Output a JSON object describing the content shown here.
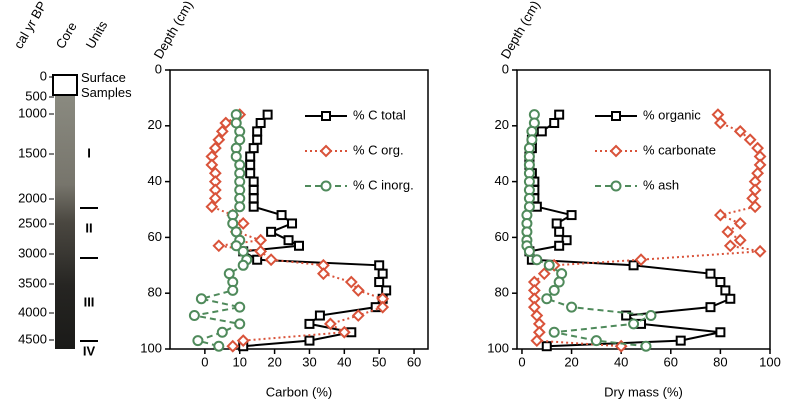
{
  "core_log": {
    "age_label": "cal yr BP",
    "core_label": "Core",
    "units_label": "Units",
    "surface_label": "Surface Samples",
    "ages": [
      0,
      500,
      1000,
      1500,
      2000,
      2500,
      3000,
      3500,
      4000,
      4500
    ],
    "units": [
      "I",
      "II",
      "III",
      "IV"
    ]
  },
  "chart_data": [
    {
      "type": "line",
      "xlabel": "Carbon (%)",
      "ylabel": "Depth (cm)",
      "depth": [
        16,
        19,
        22,
        25,
        28,
        31,
        34,
        37,
        40,
        43,
        46,
        49,
        52,
        55,
        58,
        61,
        63,
        65,
        68,
        70,
        73,
        76,
        79,
        82,
        85,
        88,
        91,
        94,
        97,
        99
      ],
      "xlim": [
        -10,
        64
      ],
      "xticks": [
        0,
        10,
        20,
        30,
        40,
        50,
        60
      ],
      "ylim": [
        0,
        100
      ],
      "yticks": [
        0,
        20,
        40,
        60,
        80,
        100
      ],
      "y_inverted": true,
      "legend": "upper right",
      "series": [
        {
          "name": "% C total",
          "color": "#000000",
          "marker": "square",
          "line_style": "solid",
          "values": [
            18,
            16,
            15,
            15,
            14,
            13,
            13,
            13,
            14,
            14,
            14,
            14,
            22,
            25,
            19,
            24,
            27,
            11,
            15,
            50,
            51,
            50,
            52,
            51,
            49,
            33,
            30,
            42,
            30,
            11
          ]
        },
        {
          "name": "% C org.",
          "color": "#d9533a",
          "marker": "diamond",
          "line_style": "dotted",
          "values": [
            10,
            6,
            5,
            4,
            3,
            2,
            2,
            3,
            3,
            3,
            3,
            2,
            8,
            11,
            9,
            16,
            4,
            16,
            19,
            34,
            34,
            42,
            44,
            51,
            51,
            44,
            36,
            40,
            11,
            8
          ]
        },
        {
          "name": "% C inorg.",
          "color": "#4f8a5b",
          "marker": "circle",
          "line_style": "dashed",
          "values": [
            9,
            9,
            10,
            10,
            9,
            9,
            10,
            10,
            10,
            10,
            10,
            10,
            8,
            8,
            9,
            10,
            9,
            11,
            12,
            11,
            7,
            8,
            8,
            -1,
            10,
            -3,
            10,
            5,
            -2,
            4
          ]
        }
      ]
    },
    {
      "type": "line",
      "xlabel": "Dry mass (%)",
      "ylabel": "Depth (cm)",
      "depth": [
        16,
        19,
        22,
        25,
        28,
        31,
        34,
        37,
        40,
        43,
        46,
        49,
        52,
        55,
        58,
        61,
        63,
        65,
        68,
        70,
        73,
        76,
        79,
        82,
        85,
        88,
        91,
        94,
        97,
        99
      ],
      "xlim": [
        -2,
        100
      ],
      "xticks": [
        0,
        20,
        40,
        60,
        80,
        100
      ],
      "ylim": [
        0,
        100
      ],
      "yticks": [
        0,
        20,
        40,
        60,
        80,
        100
      ],
      "y_inverted": true,
      "legend": "upper right",
      "series": [
        {
          "name": "% organic",
          "color": "#000000",
          "marker": "square",
          "line_style": "solid",
          "values": [
            15,
            13,
            8,
            4,
            4,
            3,
            3,
            4,
            5,
            5,
            5,
            6,
            20,
            14,
            15,
            18,
            15,
            3,
            4,
            45,
            76,
            80,
            82,
            84,
            76,
            42,
            48,
            80,
            64,
            10
          ]
        },
        {
          "name": "% carbonate",
          "color": "#d9533a",
          "marker": "diamond",
          "line_style": "dotted",
          "values": [
            79,
            80,
            88,
            92,
            95,
            96,
            96,
            95,
            94,
            94,
            93,
            94,
            80,
            88,
            83,
            88,
            84,
            96,
            48,
            13,
            9,
            5,
            5,
            5,
            5,
            6,
            7,
            7,
            6,
            40
          ]
        },
        {
          "name": "% ash",
          "color": "#4f8a5b",
          "marker": "circle",
          "line_style": "dashed",
          "values": [
            5,
            5,
            4,
            4,
            3,
            3,
            3,
            3,
            3,
            3,
            3,
            3,
            2,
            2,
            2,
            2,
            2,
            3,
            6,
            11,
            16,
            15,
            13,
            10,
            20,
            52,
            45,
            13,
            30,
            50
          ]
        }
      ]
    }
  ]
}
